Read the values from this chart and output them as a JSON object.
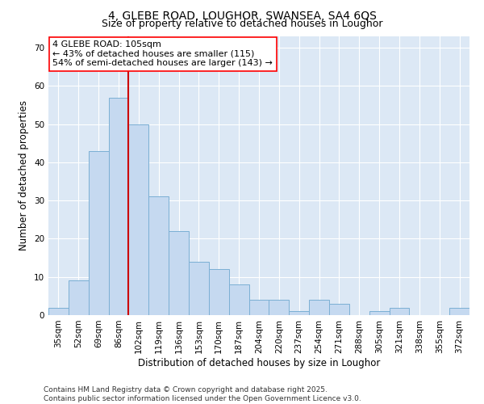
{
  "title": "4, GLEBE ROAD, LOUGHOR, SWANSEA, SA4 6QS",
  "subtitle": "Size of property relative to detached houses in Loughor",
  "xlabel": "Distribution of detached houses by size in Loughor",
  "ylabel": "Number of detached properties",
  "categories": [
    "35sqm",
    "52sqm",
    "69sqm",
    "86sqm",
    "102sqm",
    "119sqm",
    "136sqm",
    "153sqm",
    "170sqm",
    "187sqm",
    "204sqm",
    "220sqm",
    "237sqm",
    "254sqm",
    "271sqm",
    "288sqm",
    "305sqm",
    "321sqm",
    "338sqm",
    "355sqm",
    "372sqm"
  ],
  "values": [
    2,
    9,
    43,
    57,
    50,
    31,
    22,
    14,
    12,
    8,
    4,
    4,
    1,
    4,
    3,
    0,
    1,
    2,
    0,
    0,
    2
  ],
  "bar_color": "#c5d9f0",
  "bar_edge_color": "#7bafd4",
  "highlight_line_color": "#cc0000",
  "highlight_line_index": 4,
  "ylim": [
    0,
    73
  ],
  "yticks": [
    0,
    10,
    20,
    30,
    40,
    50,
    60,
    70
  ],
  "background_color": "#dce8f5",
  "annotation_text_line1": "4 GLEBE ROAD: 105sqm",
  "annotation_text_line2": "← 43% of detached houses are smaller (115)",
  "annotation_text_line3": "54% of semi-detached houses are larger (143) →",
  "footer_text": "Contains HM Land Registry data © Crown copyright and database right 2025.\nContains public sector information licensed under the Open Government Licence v3.0.",
  "title_fontsize": 10,
  "subtitle_fontsize": 9,
  "axis_label_fontsize": 8.5,
  "tick_fontsize": 7.5,
  "footer_fontsize": 6.5,
  "annotation_fontsize": 8
}
